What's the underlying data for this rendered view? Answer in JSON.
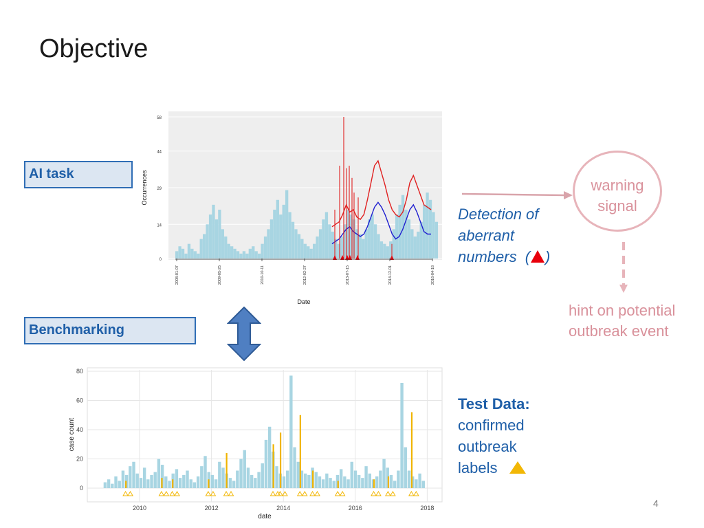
{
  "slide": {
    "title": "Objective",
    "page_number": "4"
  },
  "labels": {
    "ai_task": "AI task",
    "benchmarking": "Benchmarking"
  },
  "detection": {
    "line1": "Detection of",
    "line2": "aberrant",
    "line3": "numbers",
    "paren_open": "(",
    "paren_close": ")"
  },
  "warning": {
    "line1": "warning",
    "line2": "signal"
  },
  "hint": {
    "line1": "hint on potential",
    "line2": "outbreak event"
  },
  "test_data": {
    "heading": "Test Data:",
    "line1": "confirmed",
    "line2": "outbreak",
    "line3": "labels"
  },
  "colors": {
    "bars": "#a8d5e2",
    "red_line": "#e02020",
    "blue_line": "#1f1fd0",
    "outbreak": "#f0b400",
    "accent": "#1f5fa8",
    "hint": "#d9919b"
  },
  "chart_data": [
    {
      "type": "line",
      "ylabel": "Occurrences",
      "xlabel": "Date",
      "yticks": [
        "0",
        "14",
        "29",
        "44",
        "58"
      ],
      "ylim": [
        0,
        58
      ],
      "xticks": [
        "2008-01-07",
        "2009-05-25",
        "2010-10-11",
        "2012-02-27",
        "2013-07-15",
        "2014-12-01",
        "2016-04-18"
      ],
      "grid": true,
      "series": [
        {
          "role": "counts",
          "render": "bar",
          "values": [
            3,
            5,
            4,
            2,
            6,
            4,
            3,
            2,
            8,
            10,
            14,
            18,
            22,
            16,
            20,
            12,
            9,
            6,
            5,
            4,
            3,
            2,
            3,
            2,
            4,
            5,
            3,
            2,
            6,
            9,
            12,
            16,
            20,
            24,
            18,
            22,
            28,
            19,
            15,
            12,
            10,
            8,
            6,
            5,
            4,
            6,
            9,
            12,
            16,
            19,
            14,
            11,
            8,
            6,
            9,
            14,
            20,
            18,
            16,
            12,
            10,
            8,
            12,
            16,
            18,
            14,
            10,
            7,
            6,
            5,
            7,
            12,
            18,
            22,
            26,
            20,
            16,
            12,
            9,
            11,
            15,
            22,
            27,
            24,
            19,
            15
          ]
        },
        {
          "role": "threshold",
          "render": "line",
          "values": [
            13,
            14,
            15,
            18,
            22,
            19,
            20,
            17,
            16,
            18,
            24,
            31,
            38,
            40,
            35,
            30,
            24,
            20,
            18,
            17,
            19,
            24,
            31,
            34,
            30,
            26,
            22,
            21,
            20
          ]
        },
        {
          "role": "baseline",
          "render": "line",
          "values": [
            6,
            7,
            8,
            10,
            12,
            13,
            11,
            10,
            9,
            10,
            13,
            17,
            21,
            23,
            21,
            18,
            14,
            10,
            8,
            9,
            12,
            16,
            20,
            22,
            19,
            15,
            11,
            10,
            10
          ]
        }
      ],
      "alarm_dates_index": [
        3,
        4,
        5,
        6,
        7,
        8,
        9,
        10,
        24
      ],
      "alarm_spikes": [
        0.45,
        0.25,
        0.75,
        0.55,
        0.6,
        0.5,
        0.3,
        0.4,
        0.0
      ]
    },
    {
      "type": "bar",
      "ylabel": "case count",
      "xlabel": "date",
      "yticks": [
        "0",
        "20",
        "40",
        "60",
        "80"
      ],
      "ylim": [
        0,
        80
      ],
      "xticks": [
        "2010",
        "2012",
        "2014",
        "2016",
        "2018"
      ],
      "grid": true,
      "series": [
        {
          "name": "",
          "values": [
            4,
            6,
            3,
            8,
            5,
            12,
            9,
            15,
            18,
            10,
            7,
            14,
            6,
            9,
            11,
            20,
            16,
            8,
            5,
            10,
            13,
            7,
            9,
            12,
            6,
            4,
            8,
            15,
            22,
            11,
            9,
            6,
            18,
            14,
            10,
            7,
            5,
            12,
            20,
            26,
            14,
            9,
            7,
            11,
            17,
            33,
            42,
            25,
            15,
            10,
            8,
            12,
            77,
            28,
            18,
            12,
            10,
            9,
            14,
            11,
            8,
            6,
            10,
            7,
            5,
            9,
            13,
            8,
            6,
            18,
            12,
            9,
            7,
            15,
            10,
            6,
            8,
            12,
            20,
            14,
            9,
            5,
            12,
            72,
            28,
            12,
            8,
            6,
            10,
            5
          ]
        }
      ],
      "outbreak_markers": [
        {
          "x": 2009.6,
          "value": 5
        },
        {
          "x": 2010.6,
          "value": 7
        },
        {
          "x": 2010.9,
          "value": 6
        },
        {
          "x": 2011.9,
          "value": 6
        },
        {
          "x": 2012.4,
          "value": 24
        },
        {
          "x": 2013.7,
          "value": 30
        },
        {
          "x": 2013.9,
          "value": 38
        },
        {
          "x": 2014.45,
          "value": 50
        },
        {
          "x": 2014.8,
          "value": 12
        },
        {
          "x": 2015.5,
          "value": 5
        },
        {
          "x": 2016.5,
          "value": 6
        },
        {
          "x": 2016.9,
          "value": 8
        },
        {
          "x": 2017.55,
          "value": 52
        }
      ]
    }
  ]
}
